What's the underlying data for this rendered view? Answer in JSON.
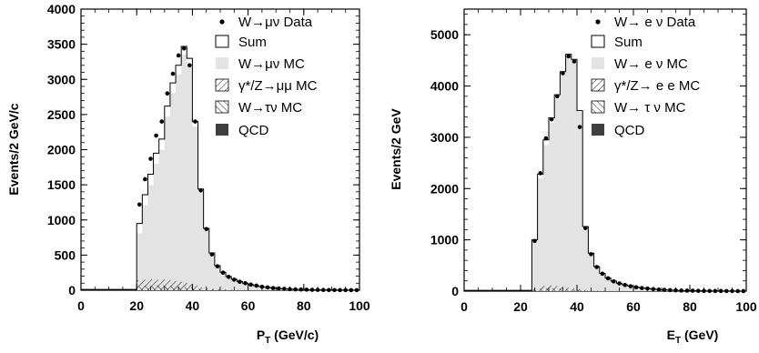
{
  "chart_data": [
    {
      "type": "bar",
      "ylabel": "Events/2 GeV/c",
      "xlabel_main": "P",
      "xlabel_sub": "T",
      "xlabel_tail": " (GeV/c)",
      "xlim": [
        0,
        100
      ],
      "ylim": [
        0,
        4000
      ],
      "xticks": [
        "0",
        "20",
        "40",
        "60",
        "80",
        "100"
      ],
      "yticks": [
        "0",
        "500",
        "1000",
        "1500",
        "2000",
        "2500",
        "3000",
        "3500",
        "4000"
      ],
      "bin_edges_start": 20,
      "bin_width": 2,
      "legend": {
        "data": "W→μν Data",
        "sum": "Sum",
        "signal": "W→μν MC",
        "zbg": "γ*/Z→μμ MC",
        "taubg": "W→τν MC",
        "qcd": "QCD"
      },
      "series": [
        {
          "name": "W→μν Data",
          "values": [
            1220,
            1580,
            1870,
            2200,
            2400,
            2800,
            3080,
            3340,
            3440,
            3200,
            2400,
            1420,
            870,
            510,
            340,
            250,
            190,
            150,
            120,
            100,
            80,
            65,
            50,
            40,
            30,
            25,
            20,
            15,
            12,
            10,
            8,
            6,
            5,
            4,
            3,
            3,
            2,
            2,
            1,
            1
          ]
        },
        {
          "name": "Sum",
          "values": [
            950,
            1360,
            1650,
            1950,
            2150,
            2620,
            2950,
            3200,
            3470,
            3300,
            2400,
            1440,
            880,
            530,
            350,
            255,
            195,
            155,
            125,
            100,
            80,
            65,
            50,
            40,
            30,
            25,
            20,
            15,
            12,
            10,
            8,
            6,
            5,
            4,
            3,
            3,
            2,
            2,
            1,
            1
          ]
        },
        {
          "name": "W→μν MC",
          "values": [
            810,
            1210,
            1495,
            1800,
            1995,
            2470,
            2810,
            3070,
            3350,
            3200,
            2330,
            1400,
            850,
            510,
            335,
            245,
            185,
            150,
            120,
            95,
            78,
            62,
            48,
            38,
            29,
            24,
            19,
            14,
            11,
            9,
            7,
            6,
            5,
            4,
            3,
            3,
            2,
            2,
            1,
            1
          ]
        },
        {
          "name": "γ*/Z→μμ MC",
          "values": [
            140,
            150,
            155,
            150,
            155,
            150,
            140,
            130,
            120,
            100,
            70,
            40,
            30,
            20,
            15,
            10,
            10,
            5,
            5,
            5,
            2,
            3,
            2,
            2,
            1,
            1,
            1,
            1,
            1,
            1,
            1,
            0,
            0,
            0,
            0,
            0,
            0,
            0,
            0,
            0
          ]
        },
        {
          "name": "W→τν MC",
          "values": [
            60,
            65,
            70,
            70,
            70,
            65,
            60,
            55,
            45,
            40,
            30,
            20,
            12,
            8,
            5,
            3,
            2,
            1,
            1,
            1,
            0,
            0,
            0,
            0,
            0,
            0,
            0,
            0,
            0,
            0,
            0,
            0,
            0,
            0,
            0,
            0,
            0,
            0,
            0,
            0
          ]
        }
      ]
    },
    {
      "type": "bar",
      "ylabel": "Events/2 GeV",
      "xlabel_main": "E",
      "xlabel_sub": "T",
      "xlabel_tail": " (GeV)",
      "xlim": [
        0,
        100
      ],
      "ylim": [
        0,
        5500
      ],
      "xticks": [
        "0",
        "20",
        "40",
        "60",
        "80",
        "100"
      ],
      "yticks": [
        "0",
        "1000",
        "2000",
        "3000",
        "4000",
        "5000"
      ],
      "bin_edges_start": 24,
      "bin_width": 2,
      "legend": {
        "data": "W→ e ν Data",
        "sum": "Sum",
        "signal": "W→ e ν MC",
        "zbg": "γ*/Z→ e e MC",
        "taubg": "W→ τ ν MC",
        "qcd": "QCD"
      },
      "series": [
        {
          "name": "W→ e ν Data",
          "values": [
            980,
            2300,
            2980,
            3350,
            3800,
            4250,
            4580,
            4480,
            3200,
            1230,
            720,
            470,
            340,
            250,
            190,
            150,
            120,
            95,
            75,
            60,
            50,
            40,
            32,
            25,
            20,
            15,
            12,
            10,
            8,
            6,
            5,
            4,
            3,
            3,
            2,
            2,
            1,
            1
          ]
        },
        {
          "name": "Sum",
          "values": [
            1000,
            2280,
            2950,
            3380,
            3830,
            4280,
            4620,
            4520,
            3520,
            1260,
            740,
            480,
            345,
            255,
            195,
            152,
            122,
            97,
            77,
            62,
            50,
            40,
            32,
            25,
            20,
            15,
            12,
            10,
            8,
            6,
            5,
            4,
            3,
            3,
            2,
            2,
            1,
            1
          ]
        },
        {
          "name": "W→ e ν MC",
          "values": [
            960,
            2200,
            2850,
            3280,
            3750,
            4220,
            4570,
            4480,
            3490,
            1240,
            730,
            470,
            340,
            250,
            190,
            150,
            120,
            95,
            75,
            60,
            49,
            39,
            31,
            24,
            19,
            15,
            12,
            10,
            8,
            6,
            5,
            4,
            3,
            3,
            2,
            2,
            1,
            1
          ]
        },
        {
          "name": "γ*/Z→ e e MC",
          "values": [
            50,
            80,
            100,
            110,
            100,
            90,
            70,
            50,
            40,
            25,
            15,
            10,
            8,
            5,
            4,
            3,
            2,
            2,
            1,
            1,
            1,
            1,
            0,
            0,
            0,
            0,
            0,
            0,
            0,
            0,
            0,
            0,
            0,
            0,
            0,
            0,
            0,
            0
          ]
        },
        {
          "name": "W→ τ ν MC",
          "values": [
            30,
            45,
            55,
            55,
            50,
            45,
            35,
            25,
            20,
            12,
            8,
            5,
            3,
            2,
            1,
            1,
            1,
            0,
            0,
            0,
            0,
            0,
            0,
            0,
            0,
            0,
            0,
            0,
            0,
            0,
            0,
            0,
            0,
            0,
            0,
            0,
            0,
            0
          ]
        }
      ]
    }
  ],
  "colors": {
    "signal_fill": "#e3e3e3",
    "qcd_fill": "#404040",
    "axis": "#000000"
  }
}
